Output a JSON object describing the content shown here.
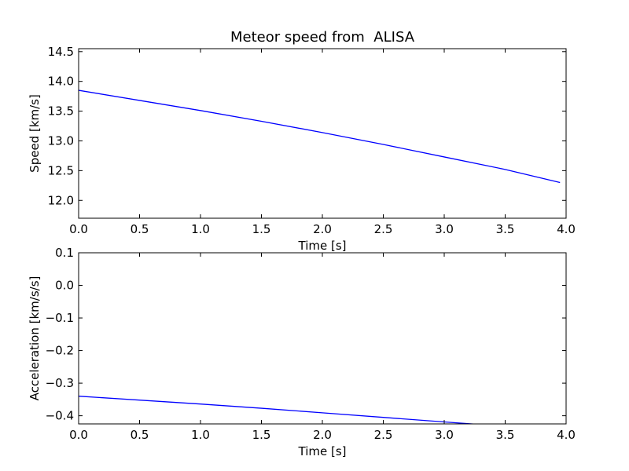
{
  "chart_data": [
    {
      "type": "line",
      "title": "Meteor speed from  ALISA",
      "xlabel": "Time [s]",
      "ylabel": "Speed [km/s]",
      "xlim": [
        0.0,
        4.0
      ],
      "ylim": [
        11.7,
        14.55
      ],
      "xticks": [
        "0.0",
        "0.5",
        "1.0",
        "1.5",
        "2.0",
        "2.5",
        "3.0",
        "3.5",
        "4.0"
      ],
      "yticks": [
        "12.0",
        "12.5",
        "13.0",
        "13.5",
        "14.0",
        "14.5"
      ],
      "grid": false,
      "series": [
        {
          "color": "#0000ff",
          "x": [
            0.0,
            0.5,
            1.0,
            1.5,
            2.0,
            2.5,
            3.0,
            3.5,
            3.95
          ],
          "y": [
            13.85,
            13.68,
            13.51,
            13.33,
            13.14,
            12.94,
            12.73,
            12.52,
            12.3
          ]
        }
      ]
    },
    {
      "type": "line",
      "title": "",
      "xlabel": "Time [s]",
      "ylabel": "Acceleration [km/s/s]",
      "xlim": [
        0.0,
        4.0
      ],
      "ylim": [
        -0.425,
        0.1
      ],
      "xticks": [
        "0.0",
        "0.5",
        "1.0",
        "1.5",
        "2.0",
        "2.5",
        "3.0",
        "3.5",
        "4.0"
      ],
      "yticks": [
        "0.1",
        "0.0",
        "−0.1",
        "−0.2",
        "−0.3",
        "−0.4"
      ],
      "grid": false,
      "series": [
        {
          "color": "#0000ff",
          "x": [
            0.0,
            0.5,
            1.0,
            1.5,
            2.0,
            2.5,
            3.0,
            3.3
          ],
          "y": [
            -0.34,
            -0.352,
            -0.364,
            -0.377,
            -0.391,
            -0.405,
            -0.419,
            -0.427
          ]
        }
      ]
    }
  ]
}
